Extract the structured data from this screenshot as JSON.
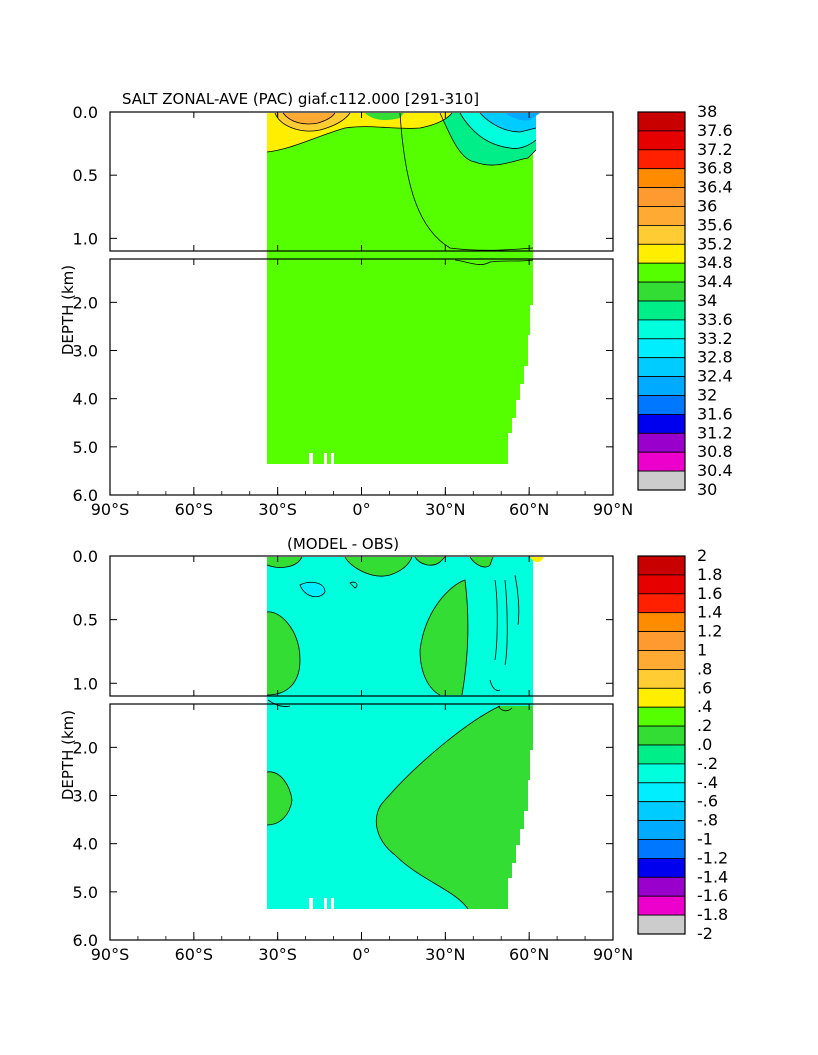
{
  "chart_data": [
    {
      "type": "heatmap",
      "title": "SALT ZONAL-AVE (PAC) giaf.c112.000 [291-310]",
      "ylabel": "DEPTH (km)",
      "xlabel": "",
      "xlim": [
        -90,
        90
      ],
      "upper_ylim": [
        0,
        1.1
      ],
      "lower_ylim": [
        1.1,
        6.0
      ],
      "x_tick_labels": [
        "90°S",
        "60°S",
        "30°S",
        "0°",
        "30°N",
        "60°N",
        "90°N"
      ],
      "upper_y_tick_labels": [
        "0.0",
        "0.5",
        "1.0"
      ],
      "lower_y_tick_labels": [
        "2.0",
        "3.0",
        "4.0",
        "5.0",
        "6.0"
      ],
      "colorbar_labels": [
        "38",
        "37.6",
        "37.2",
        "36.8",
        "36.4",
        "36",
        "35.6",
        "35.2",
        "34.8",
        "34.4",
        "34",
        "33.6",
        "33.2",
        "32.8",
        "32.4",
        "32",
        "31.6",
        "31.2",
        "30.8",
        "30.4",
        "30"
      ],
      "colors": [
        "#c80000",
        "#e60000",
        "#ff2000",
        "#ff8c00",
        "#ff9a30",
        "#ffaa33",
        "#ffcc33",
        "#ffee00",
        "#55ff00",
        "#33dd33",
        "#00ee88",
        "#00ffdd",
        "#00eeff",
        "#00ccff",
        "#00aaff",
        "#0077ff",
        "#0000ee",
        "#9900cc",
        "#ee00cc",
        "#cccccc",
        "#707070"
      ],
      "data_extent_lat": [
        -35,
        62
      ],
      "max_depth_km": 5.35
    },
    {
      "type": "heatmap",
      "title": "(MODEL - OBS)",
      "ylabel": "DEPTH (km)",
      "xlabel": "",
      "xlim": [
        -90,
        90
      ],
      "upper_ylim": [
        0,
        1.1
      ],
      "lower_ylim": [
        1.1,
        6.0
      ],
      "x_tick_labels": [
        "90°S",
        "60°S",
        "30°S",
        "0°",
        "30°N",
        "60°N",
        "90°N"
      ],
      "upper_y_tick_labels": [
        "0.0",
        "0.5",
        "1.0"
      ],
      "lower_y_tick_labels": [
        "2.0",
        "3.0",
        "4.0",
        "5.0",
        "6.0"
      ],
      "colorbar_labels": [
        "2",
        "1.8",
        "1.6",
        "1.4",
        "1.2",
        "1",
        ".8",
        ".6",
        ".4",
        ".2",
        ".0",
        "-.2",
        "-.4",
        "-.6",
        "-.8",
        "-1",
        "-1.2",
        "-1.4",
        "-1.6",
        "-1.8",
        "-2"
      ],
      "colors": [
        "#c80000",
        "#e60000",
        "#ff2000",
        "#ff8c00",
        "#ff9a30",
        "#ffaa33",
        "#ffcc33",
        "#ffee00",
        "#55ff00",
        "#33dd33",
        "#00ee88",
        "#00ffdd",
        "#00eeff",
        "#00ccff",
        "#00aaff",
        "#0077ff",
        "#0000ee",
        "#9900cc",
        "#ee00cc",
        "#cccccc",
        "#707070"
      ],
      "data_extent_lat": [
        -35,
        62
      ],
      "max_depth_km": 5.35
    }
  ]
}
